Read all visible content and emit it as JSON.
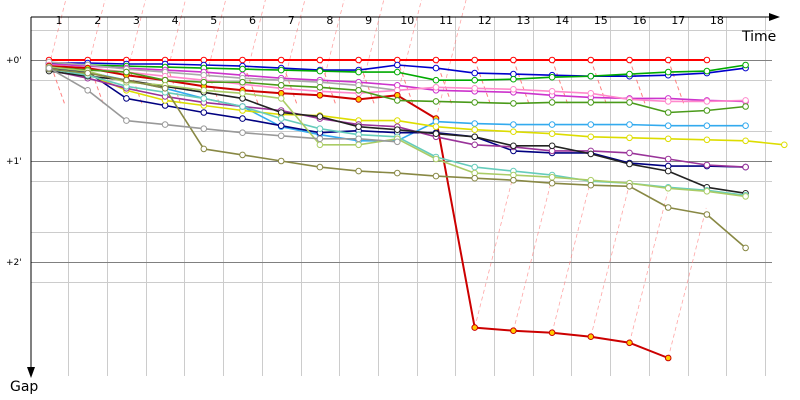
{
  "chart_data": {
    "type": "line",
    "title": "",
    "xlabel": "Time",
    "ylabel": "Gap",
    "x_ticks": [
      "1",
      "2",
      "3",
      "4",
      "5",
      "6",
      "7",
      "8",
      "9",
      "10",
      "11",
      "12",
      "13",
      "14",
      "15",
      "16",
      "17",
      "18"
    ],
    "y_ticks": [
      {
        "value": 0,
        "label": "+0'"
      },
      {
        "value": 1,
        "label": "+1'"
      },
      {
        "value": 2,
        "label": "+2'"
      }
    ],
    "xlim": [
      0.5,
      19.8
    ],
    "ylim": [
      -0.42,
      3.1
    ],
    "y_inverted": true,
    "grid": true,
    "legend": "none",
    "colors": {
      "grid_light": "#cccccc",
      "grid_major": "#808080",
      "pit_lines": "#ff8080",
      "axis": "#000000"
    },
    "series": [
      {
        "color": "#ff0000",
        "values": [
          0,
          0,
          0,
          0,
          0,
          0,
          0,
          0,
          0,
          0,
          0,
          0,
          0,
          0,
          0,
          0,
          0,
          0
        ]
      },
      {
        "color": "#0000cc",
        "values": [
          0.03,
          0.03,
          0.04,
          0.04,
          0.05,
          0.06,
          0.08,
          0.1,
          0.1,
          0.05,
          0.08,
          0.13,
          0.14,
          0.15,
          0.16,
          0.16,
          0.15,
          0.13,
          0.08
        ]
      },
      {
        "color": "#00aa00",
        "values": [
          0.04,
          0.05,
          0.06,
          0.07,
          0.08,
          0.09,
          0.1,
          0.11,
          0.12,
          0.12,
          0.2,
          0.2,
          0.19,
          0.17,
          0.16,
          0.14,
          0.12,
          0.11,
          0.05
        ]
      },
      {
        "color": "#cc33cc",
        "values": [
          0.04,
          0.06,
          0.08,
          0.1,
          0.12,
          0.15,
          0.18,
          0.2,
          0.22,
          0.25,
          0.3,
          0.31,
          0.32,
          0.35,
          0.37,
          0.38,
          0.38,
          0.4,
          0.41
        ]
      },
      {
        "color": "#aaaaaa",
        "values": [
          0.02,
          0.05,
          0.09,
          0.12,
          0.15,
          0.18,
          0.2,
          0.22,
          0.25,
          0.3
        ]
      },
      {
        "color": "#ff88cc",
        "values": [
          0.05,
          0.08,
          0.12,
          0.16,
          0.2,
          0.24,
          0.28,
          0.31,
          0.33,
          0.3,
          0.27,
          0.28,
          0.29,
          0.31,
          0.33,
          0.39,
          0.41,
          0.41,
          0.4
        ]
      },
      {
        "color": "#cc0000",
        "values": [
          0.06,
          0.08,
          0.15,
          0.2,
          0.26,
          0.3,
          0.33,
          0.35,
          0.39,
          0.35,
          0.58,
          2.65,
          2.68,
          2.7,
          2.74,
          2.8,
          2.95
        ]
      },
      {
        "color": "#4a9a1a",
        "values": [
          0.07,
          0.1,
          0.12,
          0.2,
          0.22,
          0.22,
          0.25,
          0.27,
          0.3,
          0.4,
          0.41,
          0.42,
          0.43,
          0.42,
          0.42,
          0.42,
          0.52,
          0.5,
          0.46
        ]
      },
      {
        "color": "#33aaee",
        "values": [
          0.08,
          0.12,
          0.2,
          0.28,
          0.38,
          0.46,
          0.66,
          0.74,
          0.8,
          0.8,
          0.61,
          0.63,
          0.64,
          0.64,
          0.64,
          0.64,
          0.65,
          0.65,
          0.65
        ]
      },
      {
        "color": "#000080",
        "values": [
          0.08,
          0.12,
          0.38,
          0.45,
          0.52,
          0.58,
          0.65,
          0.72,
          0.7,
          0.72,
          0.72,
          0.76,
          0.9,
          0.92,
          0.92,
          1.02,
          1.05,
          1.05,
          1.06
        ]
      },
      {
        "color": "#dddd00",
        "values": [
          0.09,
          0.14,
          0.3,
          0.4,
          0.45,
          0.5,
          0.54,
          0.55,
          0.6,
          0.6,
          0.66,
          0.69,
          0.71,
          0.73,
          0.76,
          0.77,
          0.78,
          0.79,
          0.8,
          0.84
        ]
      },
      {
        "color": "#993399",
        "values": [
          0.1,
          0.18,
          0.28,
          0.36,
          0.42,
          0.46,
          0.5,
          0.58,
          0.64,
          0.66,
          0.76,
          0.84,
          0.86,
          0.9,
          0.9,
          0.92,
          0.98,
          1.04,
          1.06
        ]
      },
      {
        "color": "#222222",
        "values": [
          0.11,
          0.16,
          0.2,
          0.26,
          0.32,
          0.38,
          0.52,
          0.56,
          0.66,
          0.69,
          0.73,
          0.76,
          0.85,
          0.85,
          0.93,
          1.03,
          1.1,
          1.26,
          1.32
        ]
      },
      {
        "color": "#66ccbb",
        "values": [
          0.09,
          0.15,
          0.26,
          0.32,
          0.38,
          0.46,
          0.58,
          0.68,
          0.74,
          0.76,
          0.96,
          1.06,
          1.1,
          1.14,
          1.2,
          1.22,
          1.26,
          1.29,
          1.34
        ]
      },
      {
        "color": "#aacc66",
        "values": [
          0.07,
          0.11,
          0.22,
          0.25,
          0.3,
          0.33,
          0.38,
          0.84,
          0.84,
          0.78,
          0.98,
          1.12,
          1.14,
          1.16,
          1.19,
          1.22,
          1.27,
          1.3,
          1.35
        ]
      },
      {
        "color": "#888844",
        "values": [
          0.09,
          0.13,
          0.2,
          0.28,
          0.88,
          0.94,
          1.0,
          1.06,
          1.1,
          1.12,
          1.15,
          1.17,
          1.19,
          1.22,
          1.24,
          1.25,
          1.46,
          1.53,
          1.86
        ]
      },
      {
        "color": "#999999",
        "values": [
          0.08,
          0.3,
          0.6,
          0.64,
          0.68,
          0.72,
          0.75,
          0.78,
          0.78,
          0.81
        ]
      }
    ]
  }
}
